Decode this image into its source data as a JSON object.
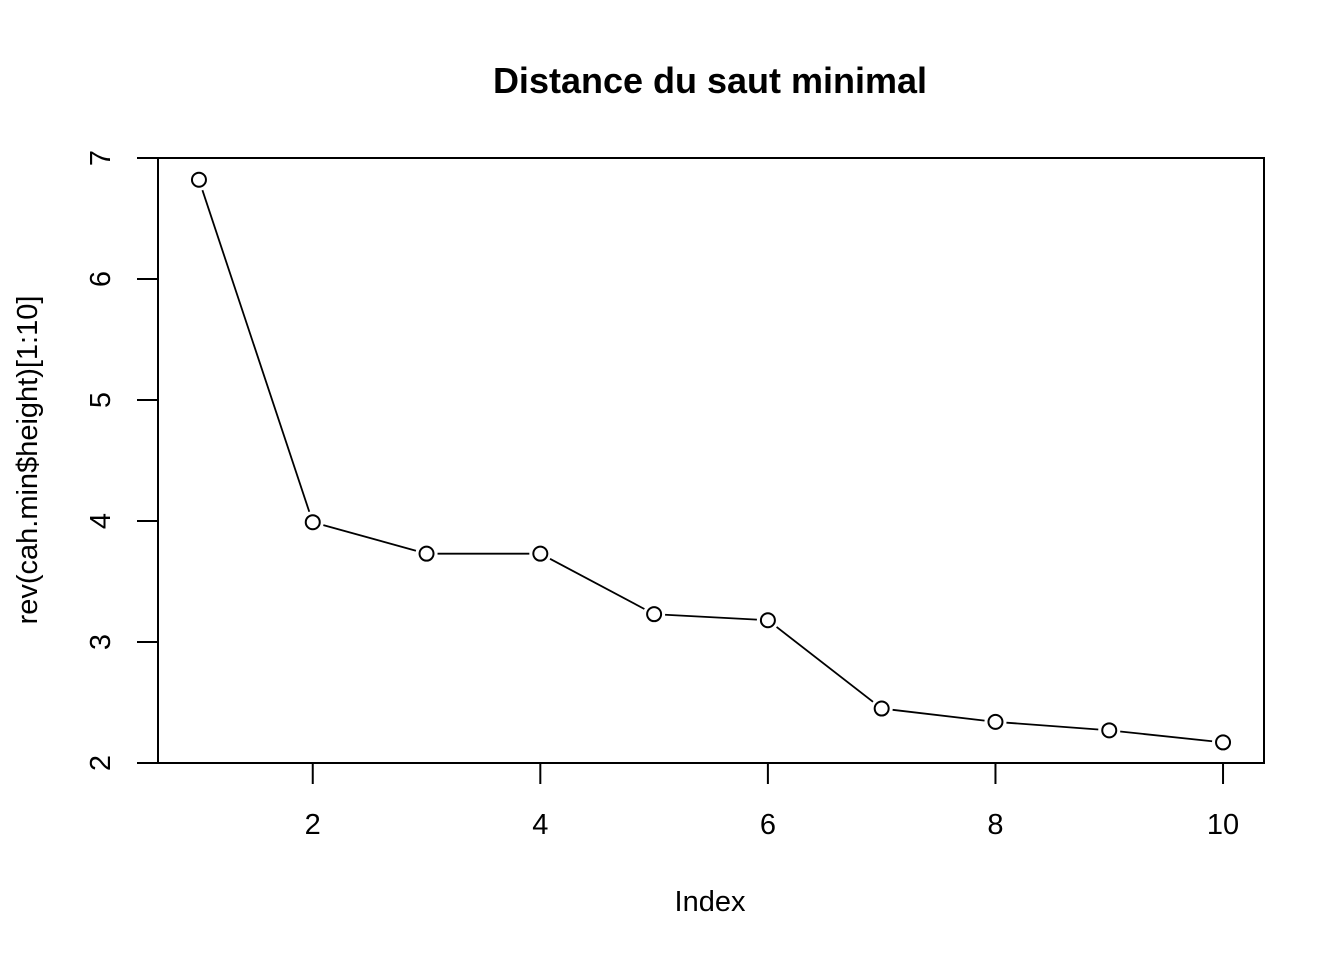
{
  "chart_data": {
    "type": "line",
    "title": "Distance du saut minimal",
    "xlabel": "Index",
    "ylabel": "rev(cah.min$height)[1:10]",
    "x": [
      1,
      2,
      3,
      4,
      5,
      6,
      7,
      8,
      9,
      10
    ],
    "values": [
      6.82,
      3.99,
      3.73,
      3.73,
      3.23,
      3.18,
      2.45,
      2.34,
      2.27,
      2.17
    ],
    "xlim": [
      0.64,
      10.36
    ],
    "ylim": [
      2,
      7
    ],
    "xticks": [
      2,
      4,
      6,
      8,
      10
    ],
    "yticks": [
      2,
      3,
      4,
      5,
      6,
      7
    ],
    "markers": "open-circle",
    "grid": false,
    "colors": {
      "line": "#000000",
      "marker_fill": "#ffffff",
      "marker_stroke": "#000000"
    }
  }
}
